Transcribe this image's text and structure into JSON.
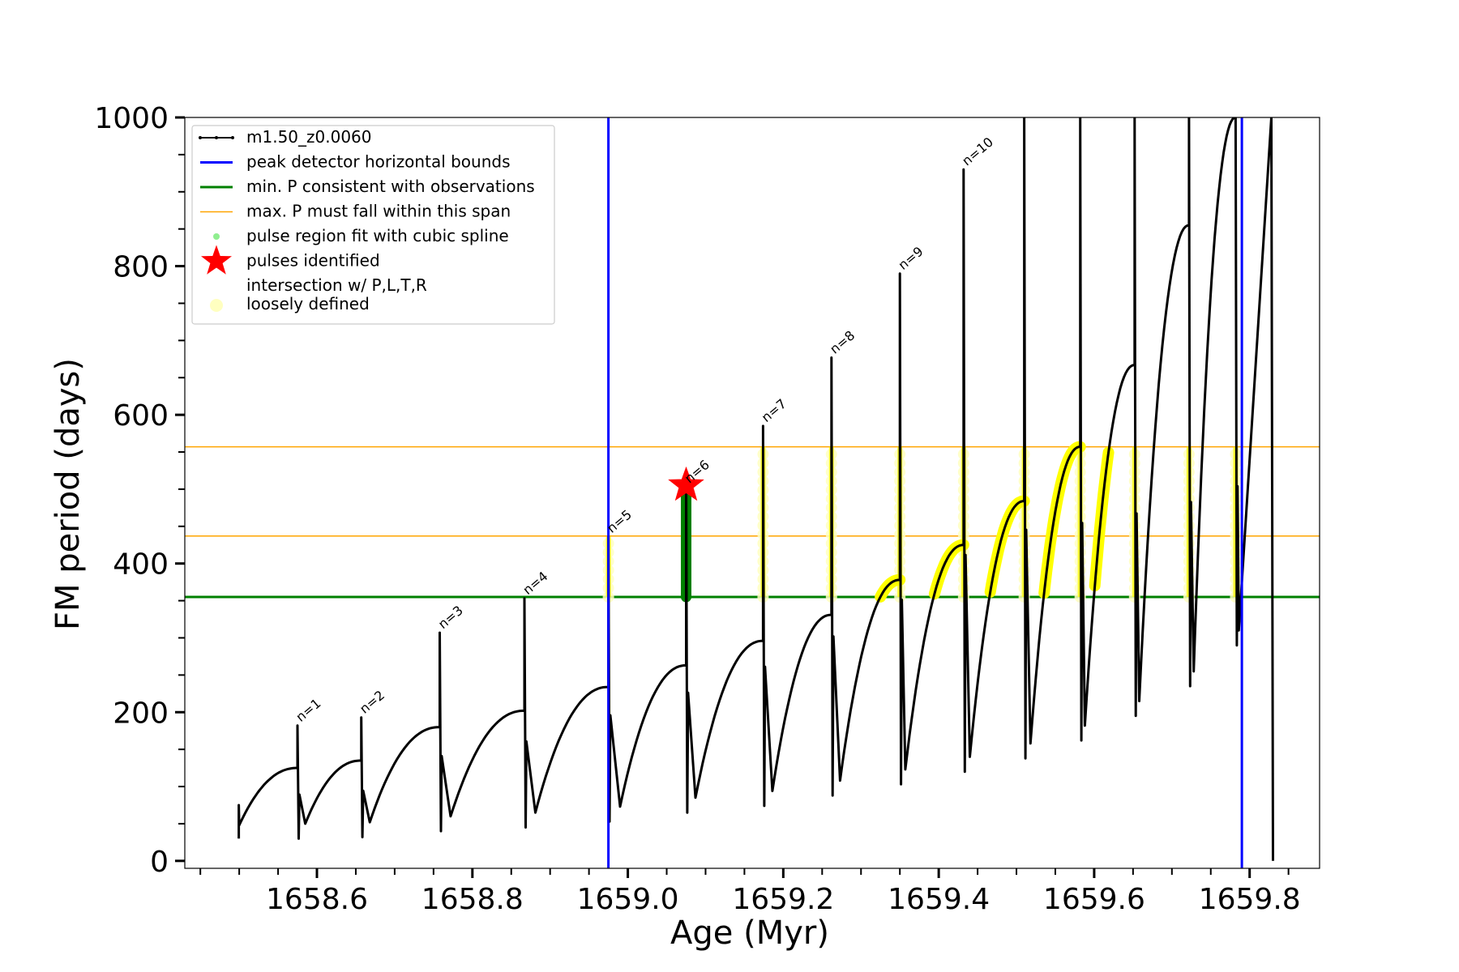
{
  "chart_data": {
    "type": "line",
    "xlabel": "Age (Myr)",
    "ylabel": "FM period (days)",
    "xlim": [
      1658.43,
      1659.89
    ],
    "ylim": [
      -10,
      1000
    ],
    "xticks": [
      1658.6,
      1658.8,
      1659.0,
      1659.2,
      1659.4,
      1659.6,
      1659.8
    ],
    "xtick_labels": [
      "1658.6",
      "1658.8",
      "1659.0",
      "1659.2",
      "1659.4",
      "1659.6",
      "1659.8"
    ],
    "yticks": [
      0,
      200,
      400,
      600,
      800,
      1000
    ],
    "ytick_labels": [
      "0",
      "200",
      "400",
      "600",
      "800",
      "1000"
    ],
    "legend_position": "top-left",
    "grid": false,
    "colors": {
      "track": "#000000",
      "bounds": "#0000ff",
      "min_period": "#008000",
      "max_period": "#ffa500",
      "spline": "#90ee90",
      "pulse": "#ff0000",
      "intersection": "#ffff00",
      "loose": "#ffffc0"
    },
    "legend": [
      {
        "label": "m1.50_z0.0060",
        "style": "track"
      },
      {
        "label": "peak detector horizontal bounds",
        "style": "bounds"
      },
      {
        "label": "min. P consistent with observations",
        "style": "min_period"
      },
      {
        "label": "max. P must fall within this span",
        "style": "max_period"
      },
      {
        "label": "pulse region fit with cubic spline",
        "style": "spline"
      },
      {
        "label": "pulses identified",
        "style": "pulse"
      },
      {
        "label": "intersection w/ P,L,T,R",
        "label2": "loosely defined",
        "style": "loose"
      }
    ],
    "bounds_x": [
      1658.975,
      1659.79
    ],
    "min_period": 355,
    "max_period_span": [
      437,
      557
    ],
    "pulses": [
      {
        "label": "n=1",
        "x": 1658.575,
        "peak": 182,
        "pre": 125,
        "min": 50,
        "min_x": 1658.585
      },
      {
        "label": "n=2",
        "x": 1658.657,
        "peak": 193,
        "pre": 135,
        "min": 52,
        "min_x": 1658.668
      },
      {
        "label": "n=3",
        "x": 1658.758,
        "peak": 307,
        "pre": 180,
        "min": 60,
        "min_x": 1658.772
      },
      {
        "label": "n=4",
        "x": 1658.867,
        "peak": 353,
        "pre": 202,
        "min": 65,
        "min_x": 1658.881
      },
      {
        "label": "n=5",
        "x": 1658.975,
        "peak": 436,
        "pre": 234,
        "min": 73,
        "min_x": 1658.99
      },
      {
        "label": "n=6",
        "x": 1659.075,
        "peak": 503,
        "pre": 263,
        "min": 85,
        "min_x": 1659.087
      },
      {
        "label": "n=7",
        "x": 1659.174,
        "peak": 585,
        "pre": 296,
        "min": 94,
        "min_x": 1659.186
      },
      {
        "label": "n=8",
        "x": 1659.262,
        "peak": 677,
        "pre": 331,
        "min": 108,
        "min_x": 1659.273
      },
      {
        "label": "n=9",
        "x": 1659.35,
        "peak": 790,
        "pre": 378,
        "min": 123,
        "min_x": 1659.357
      },
      {
        "label": "n=10",
        "x": 1659.432,
        "peak": 930,
        "pre": 425,
        "min": 140,
        "min_x": 1659.44
      },
      {
        "label": "",
        "x": 1659.51,
        "peak": 1000,
        "pre": 484,
        "min": 158,
        "min_x": 1659.518
      },
      {
        "label": "",
        "x": 1659.582,
        "peak": 1000,
        "pre": 557,
        "min": 182,
        "min_x": 1659.588
      },
      {
        "label": "",
        "x": 1659.652,
        "peak": 1000,
        "pre": 667,
        "min": 215,
        "min_x": 1659.658
      },
      {
        "label": "",
        "x": 1659.722,
        "peak": 1000,
        "pre": 855,
        "min": 255,
        "min_x": 1659.728
      },
      {
        "label": "",
        "x": 1659.782,
        "peak": 1000,
        "pre": 1000,
        "min": 310,
        "min_x": 1659.786
      }
    ],
    "pulses_identified": [
      {
        "x": 1659.075,
        "y": 505
      }
    ],
    "track_start": {
      "x": 1658.5,
      "y": 48
    },
    "track_end_x": 1659.83
  }
}
